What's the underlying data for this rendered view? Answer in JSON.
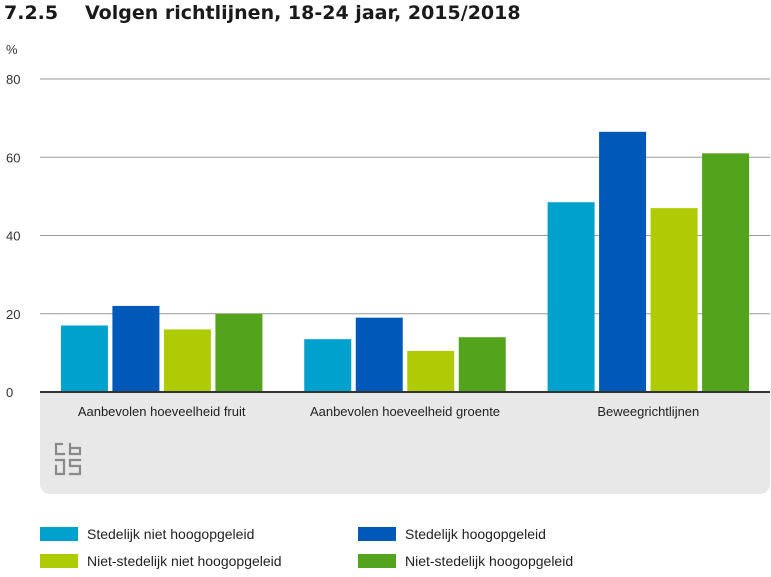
{
  "title": {
    "number": "7.2.5",
    "text": "Volgen richtlijnen, 18-24 jaar, 2015/2018"
  },
  "chart_data": {
    "type": "bar",
    "unit_label": "%",
    "categories": [
      "Aanbevolen hoeveelheid fruit",
      "Aanbevolen hoeveelheid groente",
      "Beweegrichtlijnen"
    ],
    "series": [
      {
        "name": "Stedelijk niet hoogopgeleid",
        "color": "#00a1cd",
        "values": [
          17,
          13.5,
          48.5
        ]
      },
      {
        "name": "Stedelijk hoogopgeleid",
        "color": "#0058b8",
        "values": [
          22,
          19,
          66.5
        ]
      },
      {
        "name": "Niet-stedelijk niet hoogopgeleid",
        "color": "#afcb05",
        "values": [
          16,
          10.5,
          47
        ]
      },
      {
        "name": "Niet-stedelijk hoogopgeleid",
        "color": "#53a31d",
        "values": [
          20,
          14,
          61
        ]
      }
    ],
    "yticks": [
      0,
      20,
      40,
      60,
      80
    ],
    "ylim": [
      0,
      80
    ],
    "grid": true,
    "legend_position": "bottom",
    "source_logo": "cbs-logo"
  }
}
